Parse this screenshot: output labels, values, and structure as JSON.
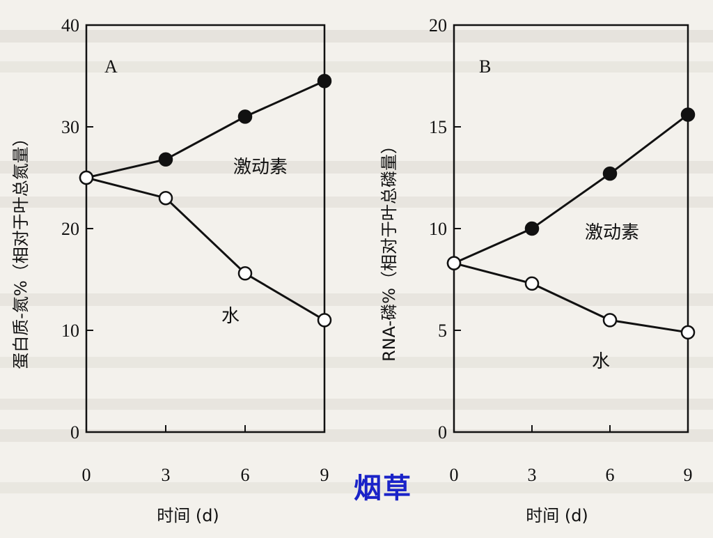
{
  "caption": "烟草",
  "chart_data": [
    {
      "type": "line",
      "panel_label": "A",
      "ylabel": "蛋白质-氮%（相对于叶总氮量）",
      "xlabel": "时间 (d)",
      "ylim": [
        0,
        40
      ],
      "yticks": [
        0,
        10,
        20,
        30,
        40
      ],
      "xlim": [
        0,
        9
      ],
      "xticks": [
        0,
        3,
        6,
        9
      ],
      "grid": false,
      "series": [
        {
          "name": "激动素",
          "marker": "filled-circle",
          "x": [
            0,
            3,
            6,
            9
          ],
          "y": [
            25,
            26.8,
            31,
            34.5
          ]
        },
        {
          "name": "水",
          "marker": "open-circle",
          "x": [
            0,
            3,
            6,
            9
          ],
          "y": [
            25,
            23,
            15.6,
            11
          ]
        }
      ]
    },
    {
      "type": "line",
      "panel_label": "B",
      "ylabel": "RNA-磷%（相对于叶总磷量）",
      "xlabel": "时间 (d)",
      "ylim": [
        0,
        20
      ],
      "yticks": [
        0,
        5,
        10,
        15,
        20
      ],
      "xlim": [
        0,
        9
      ],
      "xticks": [
        0,
        3,
        6,
        9
      ],
      "grid": false,
      "series": [
        {
          "name": "激动素",
          "marker": "filled-circle",
          "x": [
            0,
            3,
            6,
            9
          ],
          "y": [
            8.3,
            10,
            12.7,
            15.6
          ]
        },
        {
          "name": "水",
          "marker": "open-circle",
          "x": [
            0,
            3,
            6,
            9
          ],
          "y": [
            8.3,
            7.3,
            5.5,
            4.9
          ]
        }
      ]
    }
  ]
}
